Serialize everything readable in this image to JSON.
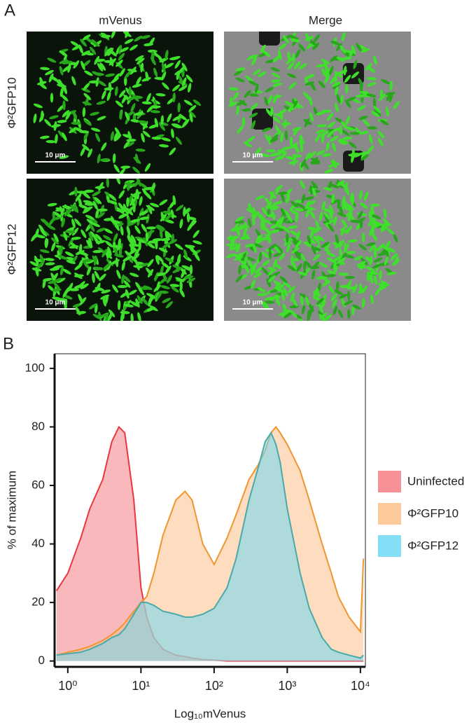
{
  "panel_a": {
    "label": "A",
    "columns": [
      "mVenus",
      "Merge"
    ],
    "rows": [
      "Φ²GFP10",
      "Φ²GFP12"
    ],
    "scale_bar": "10 μm"
  },
  "chart_data": {
    "type": "area",
    "panel_label": "B",
    "x_label": "Log₁₀mVenus",
    "y_label": "% of maximum",
    "xscale": "log",
    "xlim": [
      0.66,
      11700
    ],
    "ylim": [
      -2,
      105
    ],
    "xticks": [
      {
        "value": 1,
        "label": "10⁰"
      },
      {
        "value": 10,
        "label": "10¹"
      },
      {
        "value": 100,
        "label": "10²"
      },
      {
        "value": 1000,
        "label": "10³"
      },
      {
        "value": 10000,
        "label": "10⁴"
      }
    ],
    "yticks": [
      0,
      20,
      40,
      60,
      80,
      100
    ],
    "legend": "right",
    "x": [
      0.7,
      1,
      1.5,
      2,
      3,
      4,
      5,
      6,
      8,
      10,
      12,
      15,
      20,
      30,
      40,
      50,
      70,
      100,
      150,
      200,
      300,
      400,
      500,
      600,
      700,
      800,
      1000,
      1500,
      2000,
      3000,
      4000,
      5000,
      7000,
      10000,
      11000
    ],
    "series": [
      {
        "name": "Uninfected",
        "color": "#f47d84",
        "stroke": "#e8383d",
        "values": [
          24,
          30,
          42,
          52,
          62,
          75,
          80,
          78,
          55,
          25,
          15,
          8,
          4,
          2,
          1.5,
          1,
          0.5,
          0.3,
          0,
          0,
          0,
          0,
          0,
          0,
          0,
          0,
          0,
          0,
          0,
          0,
          0,
          0,
          0,
          0,
          0
        ]
      },
      {
        "name": "Φ²GFP10",
        "color": "#fbbf8a",
        "stroke": "#f0962e",
        "values": [
          2,
          3,
          4,
          5,
          7,
          9,
          11,
          13,
          17,
          20,
          22,
          30,
          43,
          55,
          58,
          55,
          40,
          33,
          42,
          50,
          62,
          67,
          72,
          78,
          80,
          78,
          74,
          65,
          55,
          40,
          30,
          22,
          15,
          10,
          35
        ]
      },
      {
        "name": "Φ²GFP12",
        "color": "#6fd8f3",
        "stroke": "#4aa9a9",
        "values": [
          2,
          2.5,
          3,
          4,
          6,
          8,
          9,
          11,
          16,
          20,
          20,
          19,
          17,
          16,
          15,
          15,
          16,
          18,
          25,
          35,
          55,
          66,
          75,
          78,
          74,
          68,
          52,
          30,
          18,
          8,
          4,
          3,
          2,
          1,
          2
        ]
      }
    ]
  }
}
